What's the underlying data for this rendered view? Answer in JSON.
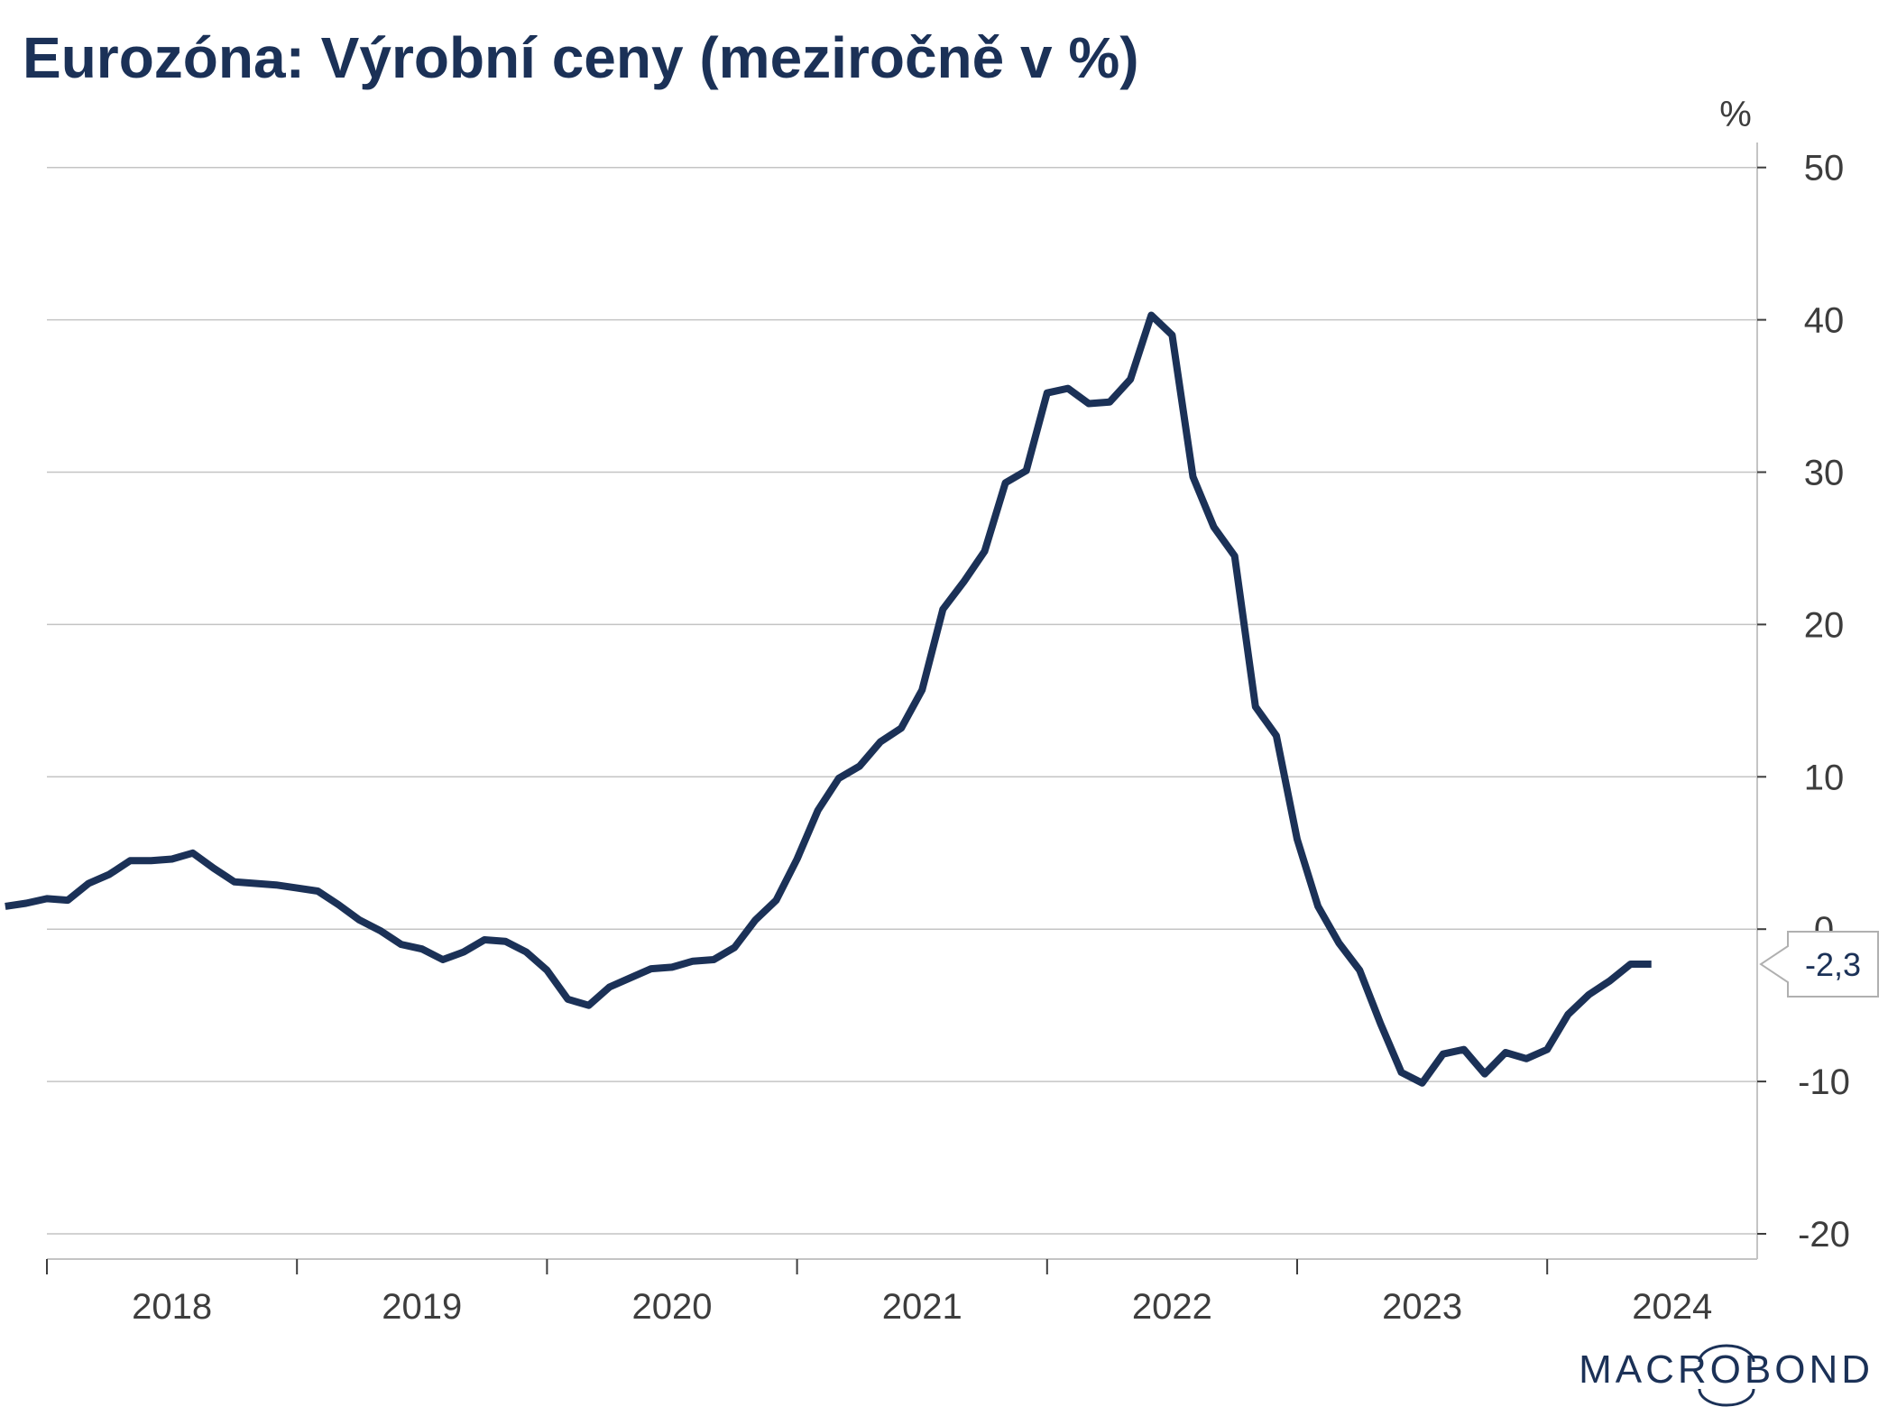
{
  "colors": {
    "series": "#1b3157",
    "title": "#1b3157",
    "grid": "#c4c4c4",
    "axis": "#3d3d3d",
    "logo": "#1b3157"
  },
  "logo": {
    "text": "MACROBOND"
  },
  "chart_data": {
    "type": "line",
    "title": "Eurozóna: Výrobní ceny (meziročně v %)",
    "unit_label": "%",
    "y_axis_side": "right",
    "ylim": [
      -22,
      52
    ],
    "yticks": [
      50,
      40,
      30,
      20,
      10,
      0,
      -10,
      -20
    ],
    "ytick_labels": [
      "50",
      "40",
      "30",
      "20",
      "10",
      "0",
      "-10",
      "-20"
    ],
    "x_year_labels": [
      "2018",
      "2019",
      "2020",
      "2021",
      "2022",
      "2023",
      "2024"
    ],
    "grid": true,
    "last_value_label": "-2,3",
    "series": [
      {
        "start": "2017-11",
        "frequency": "monthly",
        "values": [
          1.5,
          1.7,
          2.0,
          1.9,
          3.0,
          3.6,
          4.5,
          4.5,
          4.6,
          5.0,
          4.0,
          3.1,
          3.0,
          2.9,
          2.7,
          2.5,
          1.6,
          0.6,
          -0.1,
          -1.0,
          -1.3,
          -2.0,
          -1.5,
          -0.7,
          -0.8,
          -1.5,
          -2.7,
          -4.6,
          -5.0,
          -3.8,
          -3.2,
          -2.6,
          -2.5,
          -2.1,
          -2.0,
          -1.2,
          0.6,
          1.9,
          4.6,
          7.8,
          9.9,
          10.7,
          12.3,
          13.2,
          15.7,
          21.0,
          22.8,
          24.8,
          29.3,
          30.1,
          35.2,
          35.5,
          34.5,
          34.6,
          36.1,
          40.3,
          39.0,
          29.7,
          26.4,
          24.5,
          14.6,
          12.7,
          5.9,
          1.5,
          -0.9,
          -2.7,
          -6.2,
          -9.4,
          -10.1,
          -8.2,
          -7.9,
          -9.5,
          -8.1,
          -8.5,
          -7.9,
          -5.6,
          -4.3,
          -3.4,
          -2.3,
          -2.3
        ]
      }
    ]
  }
}
